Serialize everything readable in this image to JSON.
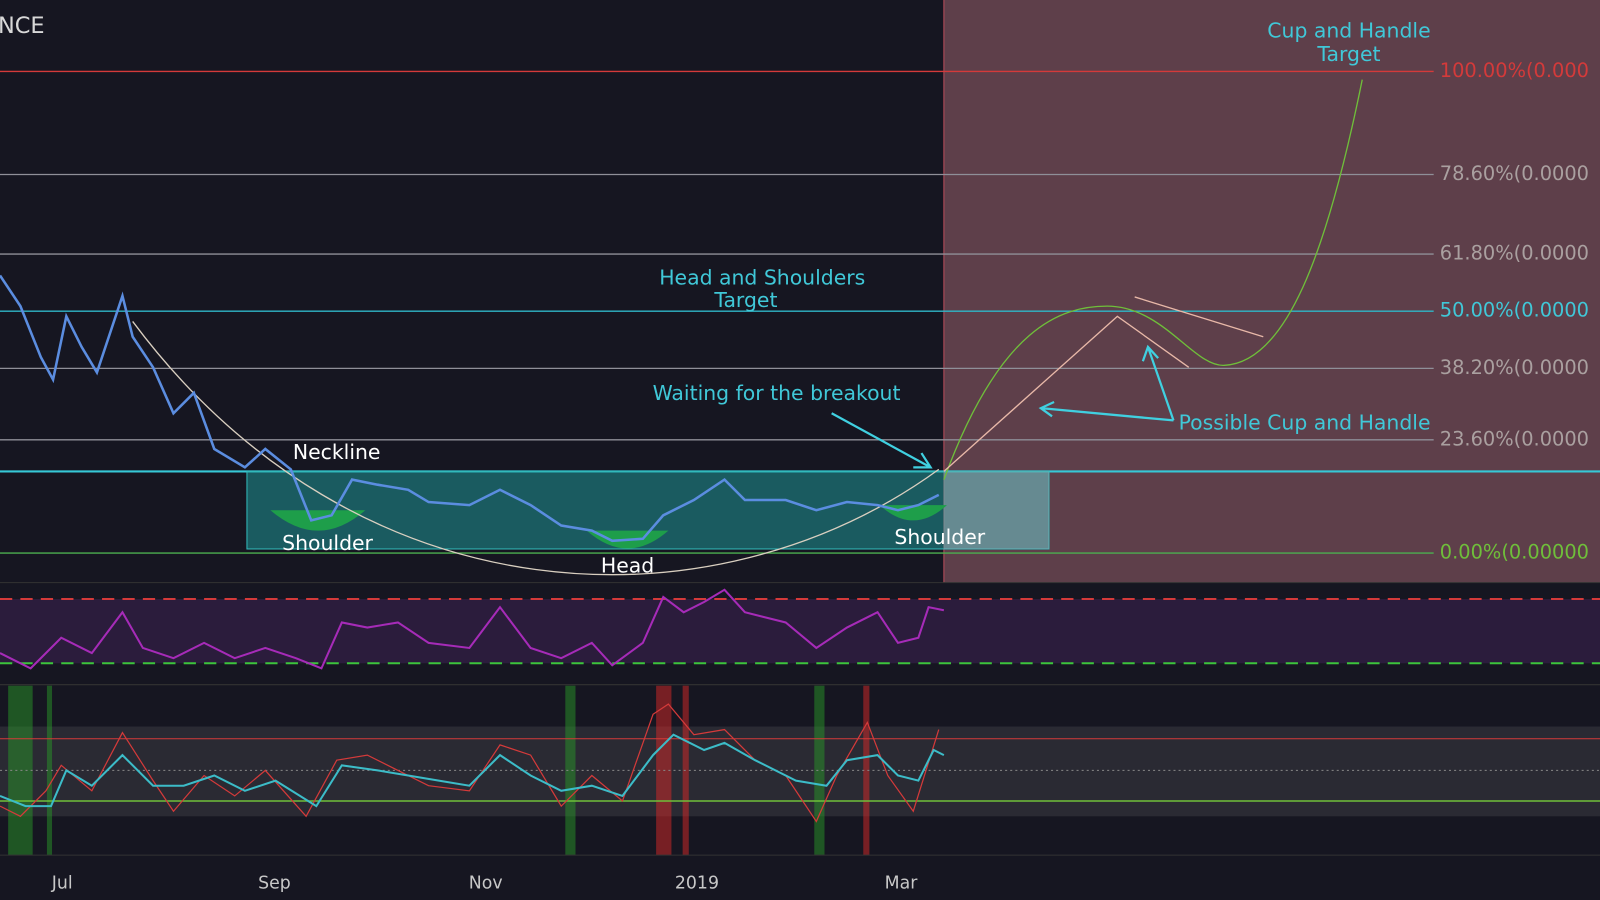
{
  "header": {
    "title": "NCE"
  },
  "fib_levels": [
    "100.00%(0.000",
    "78.60%(0.0000",
    "61.80%(0.0000",
    "50.00%(0.0000",
    "38.20%(0.0000",
    "23.60%(0.0000",
    "0.00%(0.00000"
  ],
  "annotations": {
    "cup_target": [
      "Cup and Handle",
      "Target"
    ],
    "hs_target": [
      "Head and Shoulders",
      "Target"
    ],
    "waiting": "Waiting for the breakout",
    "possible_cup": "Possible Cup and Handle",
    "neckline": "Neckline",
    "left_shoulder": "Shoulder",
    "head": "Head",
    "right_shoulder": "Shoulder"
  },
  "x_axis": [
    "Jul",
    "Sep",
    "Nov",
    "2019",
    "Mar"
  ]
}
